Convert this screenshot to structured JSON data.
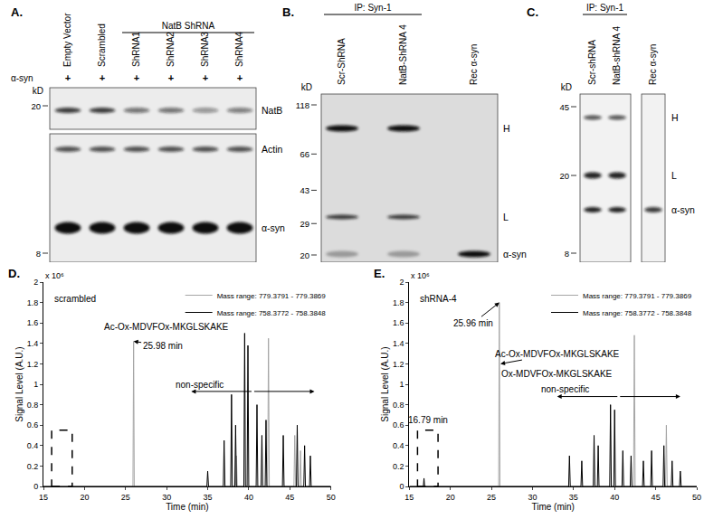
{
  "panels": [
    {
      "label": "A.",
      "header": {
        "text": "NatB ShRNA",
        "lanes": [
          2,
          5
        ]
      },
      "lanes": [
        "Empty Vector",
        "Scrambled",
        "ShRNA1",
        "ShRNA2",
        "ShRNA3",
        "ShRNA4"
      ],
      "row": {
        "name": "α-syn",
        "marks": [
          "+",
          "+",
          "+",
          "+",
          "+",
          "+"
        ]
      },
      "kd_label": "kD",
      "markers": [
        20,
        8
      ],
      "bands": [
        {
          "label": "NatB",
          "lanes": [
            0.8,
            0.8,
            0.55,
            0.55,
            0.4,
            0.5
          ]
        },
        {
          "label": "Actin",
          "lanes": [
            0.7,
            0.7,
            0.7,
            0.7,
            0.7,
            0.7
          ]
        },
        {
          "label": "α-syn",
          "lanes": [
            1,
            1,
            1,
            1,
            1,
            1
          ]
        }
      ]
    },
    {
      "label": "B.",
      "header": {
        "text": "IP: Syn-1",
        "lanes": [
          0,
          1
        ]
      },
      "lanes": [
        "Scr-ShRNA",
        "NatB-ShRNA 4",
        "Rec α-syn"
      ],
      "kd_label": "kD",
      "markers": [
        118,
        66,
        43,
        29,
        20
      ],
      "bands": [
        {
          "label": "H",
          "lanes": [
            1,
            1,
            0
          ]
        },
        {
          "label": "L",
          "lanes": [
            0.8,
            0.8,
            0
          ]
        },
        {
          "label": "α-syn",
          "lanes": [
            0.3,
            0.3,
            1
          ]
        }
      ]
    },
    {
      "label": "C.",
      "header": {
        "text": "IP: Syn-1",
        "lanes": [
          0,
          1
        ]
      },
      "lanes": [
        "Scr-shRNA",
        "NatB-shRNA 4",
        "Rec α-syn"
      ],
      "kd_label": "kD",
      "markers": [
        45,
        20,
        8
      ],
      "bands": [
        {
          "label": "H",
          "lanes": [
            0.7,
            0.7,
            0
          ]
        },
        {
          "label": "L",
          "lanes": [
            0.9,
            0.9,
            0
          ]
        },
        {
          "label": "α-syn",
          "lanes": [
            0.9,
            0.9,
            0.8
          ]
        }
      ]
    }
  ],
  "chart_data": [
    {
      "panel_label": "D.",
      "type": "line",
      "title": "scrambled",
      "x_label": "Time (min)",
      "y_label": "Signal Level (A.U.)",
      "y_multiplier": "x 10⁶",
      "xlim": [
        15,
        50
      ],
      "xticks": [
        15,
        20,
        25,
        30,
        35,
        40,
        45,
        50
      ],
      "ylim": [
        0,
        2
      ],
      "yticks": [
        0,
        0.2,
        0.4,
        0.6,
        0.8,
        1,
        1.2,
        1.4,
        1.6,
        1.8,
        2
      ],
      "grid": false,
      "legend": "upper right",
      "series": [
        {
          "name": "Mass range: 779.3791 - 779.3869",
          "color": "#a6a6a6",
          "x": [
            15,
            25.9,
            25.98,
            26.06,
            38.4,
            38.5,
            38.6,
            42.3,
            42.4,
            42.5,
            45.5,
            45.6,
            45.7,
            46.2,
            46.3,
            46.4,
            50
          ],
          "values": [
            0,
            0,
            1.42,
            0,
            0,
            0.3,
            0,
            0,
            1.45,
            0,
            0,
            0.5,
            0,
            0,
            0.35,
            0,
            0
          ]
        },
        {
          "name": "Mass range: 758.3772 - 758.3848",
          "color": "#000000",
          "x": [
            15,
            34.9,
            35,
            35.1,
            36.9,
            37,
            37.1,
            37.8,
            37.9,
            38,
            38.3,
            38.4,
            38.5,
            39.4,
            39.5,
            39.6,
            39.8,
            39.9,
            40,
            40.9,
            41,
            41.1,
            41.5,
            41.6,
            41.7,
            42,
            42.1,
            42.2,
            44.1,
            44.2,
            44.3,
            45.8,
            45.9,
            46,
            46.7,
            46.8,
            46.9,
            47.4,
            47.5,
            47.6,
            50
          ],
          "values": [
            0,
            0,
            0.15,
            0,
            0,
            0.45,
            0,
            0,
            0.9,
            0,
            0,
            0.6,
            0,
            0,
            1.5,
            0,
            0,
            1.38,
            0,
            0,
            0.8,
            0,
            0,
            0.5,
            0,
            0,
            0.65,
            0,
            0,
            0.5,
            0,
            0,
            0.6,
            0,
            0,
            0.4,
            0,
            0,
            0.3,
            0,
            0
          ]
        }
      ],
      "annotations": [
        {
          "text": "25.98 min",
          "x": 29.5,
          "y": 1.38,
          "arrow_to": [
            25.98,
            1.42
          ]
        },
        {
          "text": "Ac-Ox-MDVFOx-MKGLSKAKE",
          "x": 30,
          "y": 1.56
        }
      ],
      "nonspecific": {
        "text": "non-specific",
        "x": 34,
        "y": 1.0,
        "span": [
          33,
          48
        ],
        "span_y": 0.93
      },
      "highlight_box": {
        "x": [
          16,
          18.5
        ],
        "y": [
          0,
          0.55
        ]
      }
    },
    {
      "panel_label": "E.",
      "type": "line",
      "title": "shRNA-4",
      "x_label": "Time (min)",
      "y_label": "Signal Level (A.U.)",
      "y_multiplier": "x 10⁶",
      "xlim": [
        15,
        50
      ],
      "xticks": [
        15,
        20,
        25,
        30,
        35,
        40,
        45,
        50
      ],
      "ylim": [
        0,
        2
      ],
      "yticks": [
        0,
        0.2,
        0.4,
        0.6,
        0.8,
        1,
        1.2,
        1.4,
        1.6,
        1.8,
        2
      ],
      "grid": false,
      "legend": "upper right",
      "series": [
        {
          "name": "Mass range: 779.3791 - 779.3869",
          "color": "#a6a6a6",
          "x": [
            15,
            25.88,
            25.96,
            26.04,
            42.3,
            42.4,
            42.5,
            46.2,
            46.3,
            46.4,
            50
          ],
          "values": [
            0,
            0,
            1.8,
            0,
            0,
            1.48,
            0,
            0,
            0.6,
            0,
            0
          ]
        },
        {
          "name": "Mass range: 758.3772 - 758.3848",
          "color": "#000000",
          "x": [
            15,
            16.71,
            16.79,
            16.87,
            34.4,
            34.5,
            34.6,
            35.9,
            36,
            36.1,
            37.4,
            37.5,
            37.6,
            37.9,
            38,
            38.1,
            39.4,
            39.5,
            39.6,
            39.9,
            40,
            40.1,
            40.9,
            41,
            41.1,
            41.9,
            42,
            42.1,
            43.4,
            43.5,
            43.6,
            44.4,
            44.5,
            44.6,
            45.9,
            46,
            46.1,
            46.9,
            47,
            47.1,
            47.9,
            48,
            48.1,
            50
          ],
          "values": [
            0,
            0,
            0.08,
            0,
            0,
            0.3,
            0,
            0,
            0.25,
            0,
            0,
            0.5,
            0,
            0,
            0.4,
            0,
            0,
            0.8,
            0,
            0,
            0.75,
            0,
            0,
            0.35,
            0,
            0,
            0.3,
            0,
            0,
            0.25,
            0,
            0,
            0.35,
            0,
            0,
            0.4,
            0,
            0,
            0.25,
            0,
            0,
            0.15,
            0,
            0
          ]
        }
      ],
      "annotations": [
        {
          "text": "25.96 min",
          "x": 22.8,
          "y": 1.6,
          "arrow_to": [
            25.96,
            1.8
          ]
        },
        {
          "text": "Ac-Ox-MDVFOx-MKGLSKAKE",
          "x": 33,
          "y": 1.3,
          "arrow_to": [
            26.1,
            1.2
          ]
        },
        {
          "text": "Ox-MDVFOx-MKGLSKAKE",
          "x": 33,
          "y": 1.1
        },
        {
          "text": "16.79 min",
          "x": 17.3,
          "y": 0.65
        }
      ],
      "nonspecific": {
        "text": "non-specific",
        "x": 34,
        "y": 0.95,
        "span": [
          33,
          48
        ],
        "span_y": 0.88
      },
      "highlight_box": {
        "x": [
          16,
          18.5
        ],
        "y": [
          0,
          0.55
        ]
      }
    }
  ]
}
